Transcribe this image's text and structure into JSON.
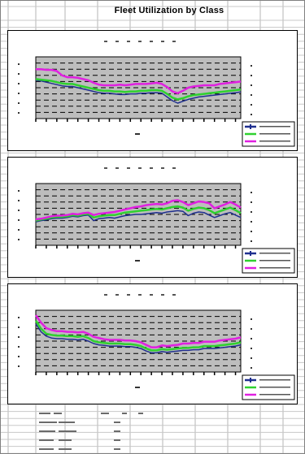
{
  "sheet": {
    "title": "Fleet Utilization by Class"
  },
  "chart_data": [
    {
      "type": "line",
      "title": "",
      "xlabel": "",
      "ylabel": "",
      "grid": true,
      "legend_position": "bottom-right",
      "series": [
        {
          "color": "#1f2f8f",
          "values": [
            62,
            61,
            59,
            57,
            55,
            53,
            52,
            52,
            50,
            48,
            46,
            44,
            42,
            41,
            41,
            40,
            39,
            39,
            40,
            40,
            41,
            41,
            42,
            42,
            41,
            35,
            29,
            25,
            28,
            31,
            33,
            35,
            36,
            37,
            38,
            39,
            40,
            41,
            42,
            43
          ]
        },
        {
          "color": "#2fd12f",
          "values": [
            64,
            63,
            62,
            61,
            59,
            57,
            56,
            56,
            54,
            52,
            50,
            48,
            46,
            45,
            45,
            44,
            44,
            43,
            44,
            44,
            45,
            45,
            46,
            46,
            45,
            40,
            34,
            31,
            33,
            36,
            38,
            39,
            40,
            41,
            42,
            43,
            44,
            45,
            46,
            47
          ]
        },
        {
          "color": "#e020e0",
          "values": [
            80,
            80,
            79,
            79,
            77,
            70,
            67,
            67,
            66,
            64,
            62,
            58,
            55,
            54,
            54,
            54,
            55,
            54,
            55,
            56,
            56,
            56,
            57,
            58,
            56,
            51,
            44,
            41,
            45,
            50,
            52,
            53,
            54,
            54,
            54,
            56,
            57,
            58,
            59,
            60
          ]
        }
      ],
      "ylim": [
        0,
        100
      ]
    },
    {
      "type": "line",
      "title": "",
      "xlabel": "",
      "ylabel": "",
      "grid": true,
      "legend_position": "bottom-right",
      "series": [
        {
          "color": "#1f2f8f",
          "values": [
            38,
            40,
            41,
            43,
            44,
            44,
            45,
            47,
            46,
            48,
            49,
            40,
            43,
            44,
            45,
            44,
            46,
            48,
            49,
            50,
            50,
            51,
            52,
            53,
            52,
            54,
            55,
            56,
            55,
            48,
            52,
            54,
            53,
            49,
            45,
            48,
            51,
            53,
            49,
            45
          ]
        },
        {
          "color": "#2fd12f",
          "values": [
            40,
            42,
            43,
            45,
            46,
            46,
            47,
            49,
            48,
            50,
            51,
            45,
            47,
            48,
            49,
            49,
            51,
            53,
            54,
            55,
            56,
            57,
            58,
            59,
            58,
            60,
            62,
            63,
            61,
            56,
            59,
            61,
            60,
            57,
            52,
            55,
            58,
            61,
            57,
            52
          ]
        },
        {
          "color": "#e020e0",
          "values": [
            42,
            43,
            45,
            47,
            48,
            48,
            49,
            51,
            50,
            52,
            53,
            49,
            51,
            52,
            53,
            54,
            56,
            58,
            60,
            62,
            63,
            65,
            66,
            67,
            66,
            68,
            72,
            73,
            70,
            65,
            68,
            71,
            70,
            68,
            60,
            63,
            66,
            70,
            66,
            61
          ]
        }
      ],
      "ylim": [
        0,
        100
      ]
    },
    {
      "type": "line",
      "title": "",
      "xlabel": "",
      "ylabel": "",
      "grid": true,
      "legend_position": "bottom-right",
      "series": [
        {
          "color": "#1f2f8f",
          "values": [
            78,
            65,
            58,
            55,
            54,
            54,
            53,
            53,
            52,
            53,
            50,
            46,
            44,
            43,
            42,
            42,
            42,
            41,
            41,
            40,
            38,
            34,
            31,
            31,
            33,
            32,
            33,
            34,
            35,
            35,
            36,
            36,
            38,
            38,
            38,
            39,
            40,
            41,
            42,
            44
          ]
        },
        {
          "color": "#2fd12f",
          "values": [
            83,
            70,
            62,
            60,
            59,
            59,
            58,
            58,
            57,
            58,
            55,
            50,
            48,
            47,
            46,
            46,
            46,
            45,
            45,
            44,
            42,
            38,
            35,
            35,
            37,
            36,
            37,
            38,
            39,
            39,
            40,
            40,
            42,
            42,
            42,
            43,
            44,
            45,
            46,
            48
          ]
        },
        {
          "color": "#e020e0",
          "values": [
            92,
            80,
            71,
            68,
            66,
            66,
            65,
            65,
            64,
            65,
            62,
            57,
            55,
            53,
            52,
            52,
            52,
            51,
            51,
            50,
            48,
            44,
            40,
            40,
            43,
            42,
            43,
            44,
            46,
            46,
            47,
            47,
            49,
            49,
            49,
            51,
            52,
            53,
            54,
            56
          ]
        }
      ],
      "ylim": [
        0,
        100
      ]
    }
  ]
}
